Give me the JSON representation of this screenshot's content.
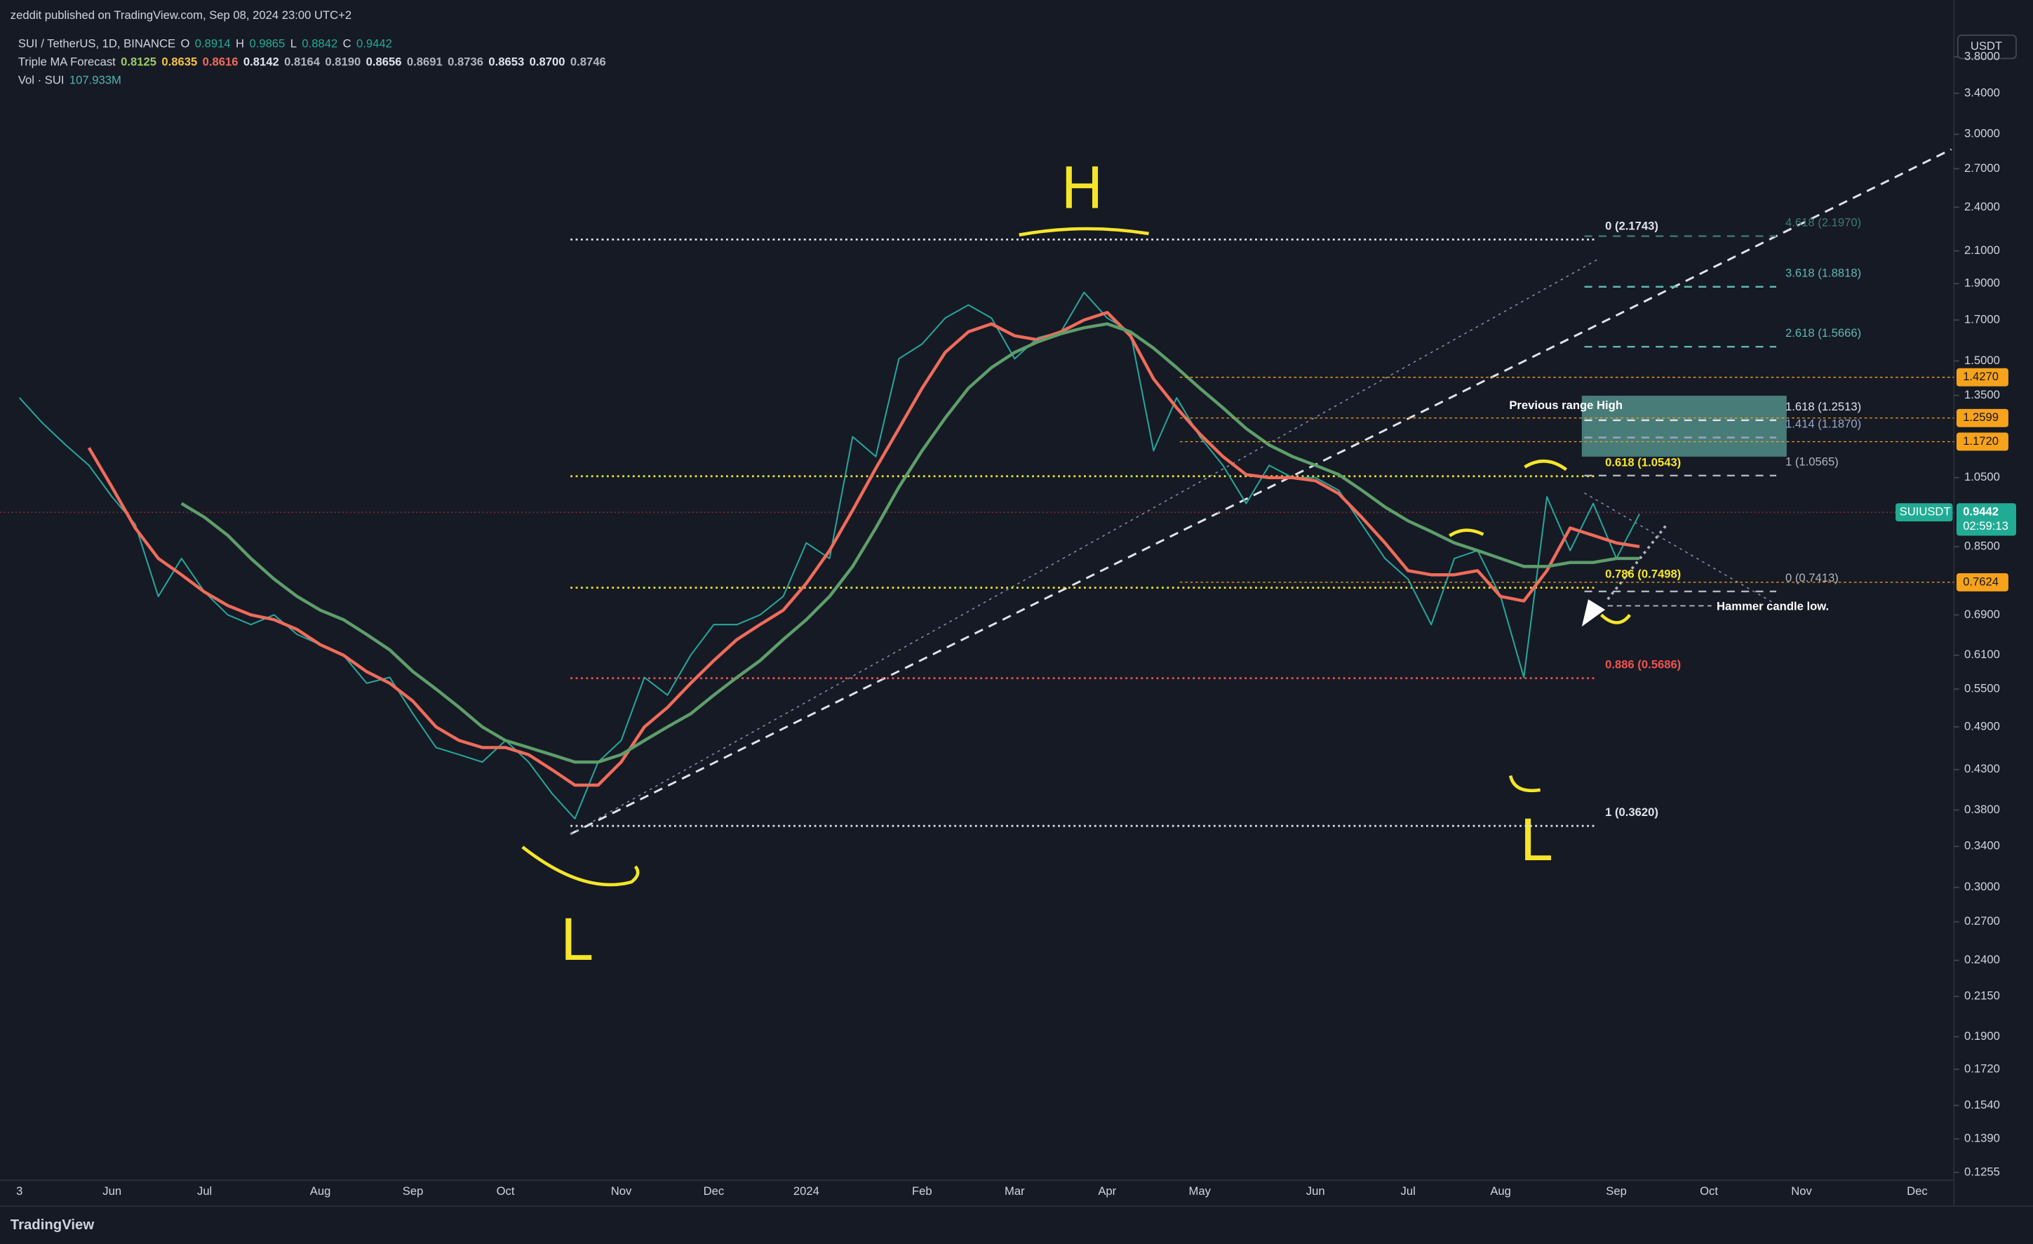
{
  "header": {
    "publisher": "zeddit published on TradingView.com, Sep 08, 2024 23:00 UTC+2",
    "symbol": "SUI / TetherUS, 1D, BINANCE",
    "ohlc": [
      {
        "key": "O",
        "value": "0.8914"
      },
      {
        "key": "H",
        "value": "0.9865"
      },
      {
        "key": "L",
        "value": "0.8842"
      },
      {
        "key": "C",
        "value": "0.9442"
      }
    ],
    "indicator": {
      "name": "Triple MA Forecast",
      "values": [
        {
          "label": "0.8125",
          "color": "#9ccc65"
        },
        {
          "label": "0.8635",
          "color": "#f5c243"
        },
        {
          "label": "0.8616",
          "color": "#ef6c5a"
        },
        {
          "label": "0.8142",
          "color": "#e0e3eb"
        },
        {
          "label": "0.8164",
          "color": "#b2b5be"
        },
        {
          "label": "0.8190",
          "color": "#b2b5be"
        },
        {
          "label": "0.8656",
          "color": "#e0e3eb"
        },
        {
          "label": "0.8691",
          "color": "#b2b5be"
        },
        {
          "label": "0.8736",
          "color": "#b2b5be"
        },
        {
          "label": "0.8653",
          "color": "#e0e3eb"
        },
        {
          "label": "0.8700",
          "color": "#e0e3eb"
        },
        {
          "label": "0.8746",
          "color": "#b2b5be"
        }
      ]
    },
    "volume": {
      "name": "Vol · SUI",
      "value": "107.933M"
    },
    "currency": "USDT"
  },
  "chart_data": {
    "type": "line",
    "log_scale": true,
    "categories": [
      "3",
      null,
      null,
      null,
      "Jun",
      null,
      null,
      null,
      "Jul",
      null,
      null,
      null,
      null,
      "Aug",
      null,
      null,
      null,
      "Sep",
      null,
      null,
      null,
      "Oct",
      null,
      null,
      null,
      null,
      "Nov",
      null,
      null,
      null,
      "Dec",
      null,
      null,
      null,
      "2024",
      null,
      null,
      null,
      null,
      "Feb",
      null,
      null,
      null,
      "Mar",
      null,
      null,
      null,
      "Apr",
      null,
      null,
      null,
      "May",
      null,
      null,
      null,
      null,
      "Jun",
      null,
      null,
      null,
      "Jul",
      null,
      null,
      null,
      "Aug",
      null,
      null,
      null,
      null,
      "Sep",
      null,
      null,
      null,
      "Oct",
      null,
      null,
      null,
      "Nov",
      null,
      null,
      null,
      null,
      "Dec",
      null
    ],
    "series": [
      {
        "color": "#26a69a",
        "values": [
          1.34,
          1.24,
          1.16,
          1.09,
          0.99,
          0.91,
          0.73,
          0.82,
          0.74,
          0.69,
          0.67,
          0.69,
          0.65,
          0.63,
          0.61,
          0.56,
          0.57,
          0.51,
          0.46,
          0.45,
          0.44,
          0.47,
          0.44,
          0.4,
          0.37,
          0.44,
          0.47,
          0.57,
          0.54,
          0.61,
          0.67,
          0.67,
          0.69,
          0.73,
          0.86,
          0.82,
          1.19,
          1.12,
          1.51,
          1.58,
          1.71,
          1.78,
          1.71,
          1.51,
          1.61,
          1.64,
          1.85,
          1.71,
          1.64,
          1.14,
          1.34,
          1.19,
          1.09,
          0.97,
          1.09,
          1.05,
          1.05,
          1.01,
          0.91,
          0.82,
          0.77,
          0.67,
          0.82,
          0.84,
          0.73,
          0.57,
          0.99,
          0.84,
          0.97,
          0.82,
          0.94,
          null,
          null,
          null,
          null,
          null,
          null,
          null,
          null,
          null,
          null,
          null,
          null,
          null
        ]
      },
      {
        "color": "#ef6c5a",
        "values": [
          null,
          null,
          null,
          1.15,
          1.02,
          0.9,
          0.82,
          0.78,
          0.74,
          0.71,
          0.69,
          0.68,
          0.66,
          0.63,
          0.61,
          0.58,
          0.56,
          0.53,
          0.49,
          0.47,
          0.46,
          0.46,
          0.45,
          0.43,
          0.41,
          0.41,
          0.44,
          0.49,
          0.52,
          0.56,
          0.6,
          0.64,
          0.67,
          0.7,
          0.76,
          0.84,
          0.95,
          1.08,
          1.22,
          1.38,
          1.54,
          1.64,
          1.68,
          1.62,
          1.6,
          1.64,
          1.7,
          1.74,
          1.62,
          1.42,
          1.3,
          1.2,
          1.12,
          1.06,
          1.05,
          1.05,
          1.04,
          1.0,
          0.93,
          0.86,
          0.79,
          0.78,
          0.78,
          0.79,
          0.73,
          0.72,
          0.79,
          0.9,
          0.88,
          0.86,
          0.85,
          null,
          null,
          null,
          null,
          null,
          null,
          null,
          null,
          null,
          null,
          null,
          null,
          null
        ]
      },
      {
        "color": "#5e9e6a",
        "values": [
          null,
          null,
          null,
          null,
          null,
          null,
          null,
          0.97,
          0.93,
          0.88,
          0.82,
          0.77,
          0.73,
          0.7,
          0.68,
          0.65,
          0.62,
          0.58,
          0.55,
          0.52,
          0.49,
          0.47,
          0.46,
          0.45,
          0.44,
          0.44,
          0.45,
          0.47,
          0.49,
          0.51,
          0.54,
          0.57,
          0.6,
          0.64,
          0.68,
          0.73,
          0.8,
          0.9,
          1.02,
          1.14,
          1.26,
          1.38,
          1.47,
          1.54,
          1.59,
          1.63,
          1.66,
          1.68,
          1.64,
          1.56,
          1.47,
          1.38,
          1.3,
          1.22,
          1.16,
          1.12,
          1.09,
          1.06,
          1.01,
          0.96,
          0.92,
          0.89,
          0.86,
          0.84,
          0.82,
          0.8,
          0.8,
          0.81,
          0.81,
          0.82,
          0.82,
          null,
          null,
          null,
          null,
          null,
          null,
          null,
          null,
          null,
          null,
          null,
          null,
          null
        ]
      }
    ],
    "ylim": [
      0.1225,
      4.52
    ],
    "yticks": [
      {
        "value": 3.8,
        "label": "3.8000"
      },
      {
        "value": 3.4,
        "label": "3.4000"
      },
      {
        "value": 3.0,
        "label": "3.0000"
      },
      {
        "value": 2.7,
        "label": "2.7000"
      },
      {
        "value": 2.4,
        "label": "2.4000"
      },
      {
        "value": 2.1,
        "label": "2.1000"
      },
      {
        "value": 1.9,
        "label": "1.9000"
      },
      {
        "value": 1.7,
        "label": "1.7000"
      },
      {
        "value": 1.5,
        "label": "1.5000"
      },
      {
        "value": 1.35,
        "label": "1.3500"
      },
      {
        "value": 1.05,
        "label": "1.0500"
      },
      {
        "value": 0.85,
        "label": "0.8500"
      },
      {
        "value": 0.69,
        "label": "0.6900"
      },
      {
        "value": 0.61,
        "label": "0.6100"
      },
      {
        "value": 0.55,
        "label": "0.5500"
      },
      {
        "value": 0.49,
        "label": "0.4900"
      },
      {
        "value": 0.43,
        "label": "0.4300"
      },
      {
        "value": 0.38,
        "label": "0.3800"
      },
      {
        "value": 0.34,
        "label": "0.3400"
      },
      {
        "value": 0.3,
        "label": "0.3000"
      },
      {
        "value": 0.27,
        "label": "0.2700"
      },
      {
        "value": 0.24,
        "label": "0.2400"
      },
      {
        "value": 0.215,
        "label": "0.2150"
      },
      {
        "value": 0.19,
        "label": "0.1900"
      },
      {
        "value": 0.172,
        "label": "0.1720"
      },
      {
        "value": 0.154,
        "label": "0.1540"
      },
      {
        "value": 0.139,
        "label": "0.1390"
      },
      {
        "value": 0.1255,
        "label": "0.1255"
      }
    ],
    "grid": false
  },
  "fib_retracement": [
    {
      "label": "0 (2.1743)",
      "price": 2.1743,
      "color": "#e0e3eb"
    },
    {
      "label": "0.618 (1.0543)",
      "price": 1.0543,
      "color": "#f5e52a"
    },
    {
      "label": "0.786 (0.7498)",
      "price": 0.7498,
      "color": "#f5e52a"
    },
    {
      "label": "0.886 (0.5686)",
      "price": 0.5686,
      "color": "#ef5350"
    },
    {
      "label": "1 (0.3620)",
      "price": 0.362,
      "color": "#e0e3eb"
    }
  ],
  "fib_extension": [
    {
      "label": "4.618 (2.1970)",
      "price": 2.197,
      "color": "#3d7a72"
    },
    {
      "label": "3.618 (1.8818)",
      "price": 1.8818,
      "color": "#5fb8b0"
    },
    {
      "label": "2.618 (1.5666)",
      "price": 1.5666,
      "color": "#5fb8b0"
    },
    {
      "label": "1.618 (1.2513)",
      "price": 1.2513,
      "color": "#e0e3eb"
    },
    {
      "label": "1.414 (1.1870)",
      "price": 1.187,
      "color": "#9aa8c8"
    },
    {
      "label": "1 (1.0565)",
      "price": 1.0565,
      "color": "#b2b5be"
    },
    {
      "label": "0 (0.7413)",
      "price": 0.7413,
      "color": "#b2b5be"
    }
  ],
  "price_tags": [
    {
      "value": 1.427,
      "label": "1.4270",
      "color": "#f7a21b"
    },
    {
      "value": 1.2599,
      "label": "1.2599",
      "color": "#f7a21b"
    },
    {
      "value": 1.172,
      "label": "1.1720",
      "color": "#f7a21b"
    },
    {
      "value": 0.7624,
      "label": "0.7624",
      "color": "#f7a21b"
    }
  ],
  "last_price": {
    "symbol": "SUIUSDT",
    "value": 0.9442,
    "label": "0.9442",
    "countdown": "02:59:13",
    "color": "#22ab94"
  },
  "annotations": {
    "range_box": "Previous range High",
    "hammer": "Hammer candle low.",
    "head": "H",
    "low_left": "L",
    "low_right": "L"
  },
  "footer": {
    "brand": "TradingView"
  }
}
